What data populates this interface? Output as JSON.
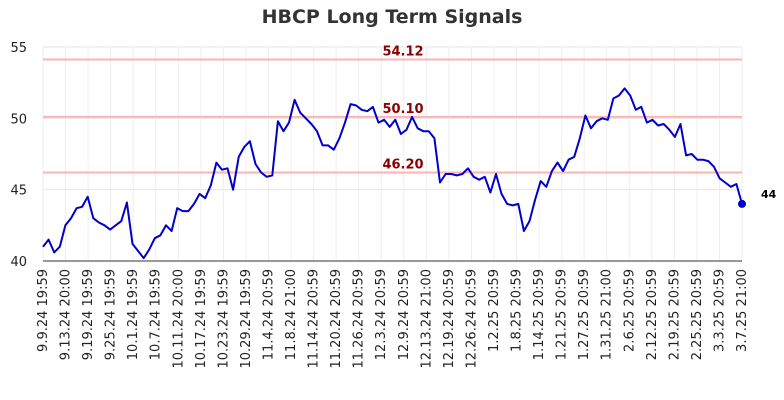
{
  "chart_data": {
    "type": "line",
    "title": "HBCP Long Term Signals",
    "xlabel": "",
    "ylabel": "",
    "ylim": [
      40,
      55
    ],
    "yticks": [
      40,
      45,
      50,
      55
    ],
    "grid": true,
    "x_tick_labels": [
      "9.9.24 19:59",
      "9.13.24 20:00",
      "9.19.24 19:59",
      "9.25.24 19:59",
      "10.1.24 19:59",
      "10.7.24 19:59",
      "10.11.24 20:00",
      "10.17.24 19:59",
      "10.23.24 19:59",
      "10.29.24 19:59",
      "11.4.24 20:59",
      "11.8.24 21:00",
      "11.14.24 20:59",
      "11.20.24 20:59",
      "11.26.24 20:59",
      "12.3.24 20:59",
      "12.9.24 20:59",
      "12.13.24 21:00",
      "12.19.24 20:59",
      "12.26.24 20:59",
      "1.2.25 20:59",
      "1.8.25 20:59",
      "1.14.25 20:59",
      "1.21.25 20:59",
      "1.27.25 20:59",
      "1.31.25 21:00",
      "2.6.25 20:59",
      "2.12.25 20:59",
      "2.19.25 20:59",
      "2.25.25 20:59",
      "3.3.25 20:59",
      "3.7.25 21:00"
    ],
    "series": [
      {
        "color": "#0000cc",
        "values": [
          41.0,
          41.5,
          40.6,
          41.0,
          42.5,
          43.0,
          43.7,
          43.8,
          44.5,
          43.0,
          42.7,
          42.5,
          42.2,
          42.5,
          42.8,
          44.1,
          41.2,
          40.7,
          40.2,
          40.8,
          41.6,
          41.8,
          42.5,
          42.1,
          43.7,
          43.5,
          43.5,
          44.0,
          44.7,
          44.4,
          45.3,
          46.9,
          46.4,
          46.5,
          45.0,
          47.3,
          48.0,
          48.4,
          46.8,
          46.2,
          45.9,
          46.0,
          49.8,
          49.1,
          49.7,
          51.3,
          50.4,
          50.0,
          49.6,
          49.1,
          48.1,
          48.1,
          47.8,
          48.6,
          49.7,
          51.0,
          50.9,
          50.6,
          50.5,
          50.8,
          49.7,
          49.9,
          49.4,
          49.9,
          48.9,
          49.2,
          50.1,
          49.3,
          49.1,
          49.1,
          48.6,
          45.5,
          46.1,
          46.1,
          46.0,
          46.1,
          46.5,
          45.9,
          45.7,
          45.9,
          44.8,
          46.1,
          44.7,
          44.0,
          43.9,
          44.0,
          42.1,
          42.8,
          44.3,
          45.6,
          45.2,
          46.3,
          46.9,
          46.3,
          47.1,
          47.3,
          48.6,
          50.2,
          49.3,
          49.8,
          50.0,
          49.9,
          51.4,
          51.6,
          52.1,
          51.6,
          50.6,
          50.8,
          49.7,
          49.9,
          49.5,
          49.6,
          49.2,
          48.7,
          49.6,
          47.4,
          47.5,
          47.1,
          47.1,
          47.0,
          46.6,
          45.8,
          45.5,
          45.2,
          45.4,
          44.0
        ]
      }
    ],
    "levels": [
      {
        "value": 54.12,
        "label": "54.12",
        "color": "#ffb3b3"
      },
      {
        "value": 50.1,
        "label": "50.10",
        "color": "#ffb3b3"
      },
      {
        "value": 46.2,
        "label": "46.20",
        "color": "#ffb3b3"
      }
    ],
    "end_label": "44",
    "end_marker_color": "#0000cc"
  }
}
